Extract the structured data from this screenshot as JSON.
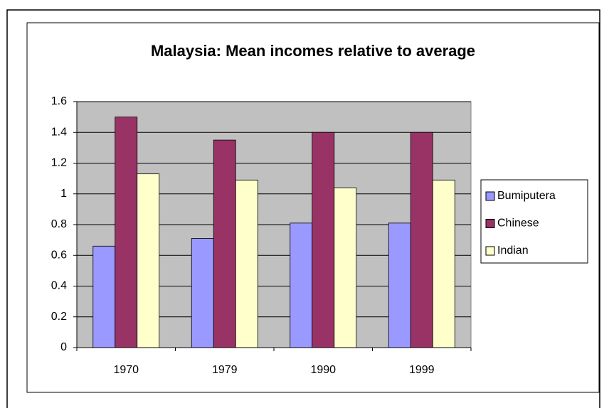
{
  "chart_data": {
    "type": "bar",
    "title": "Malaysia: Mean incomes relative to average",
    "categories": [
      "1970",
      "1979",
      "1990",
      "1999"
    ],
    "series": [
      {
        "name": "Bumiputera",
        "color": "#9999ff",
        "values": [
          0.66,
          0.71,
          0.81,
          0.81
        ]
      },
      {
        "name": "Chinese",
        "color": "#993366",
        "values": [
          1.5,
          1.35,
          1.4,
          1.4
        ]
      },
      {
        "name": "Indian",
        "color": "#ffffcc",
        "values": [
          1.13,
          1.09,
          1.04,
          1.09
        ]
      }
    ],
    "ylim": [
      0,
      1.6
    ],
    "yticks": [
      0,
      0.2,
      0.4,
      0.6,
      0.8,
      1,
      1.2,
      1.4,
      1.6
    ],
    "grid": true,
    "legend": "right"
  }
}
